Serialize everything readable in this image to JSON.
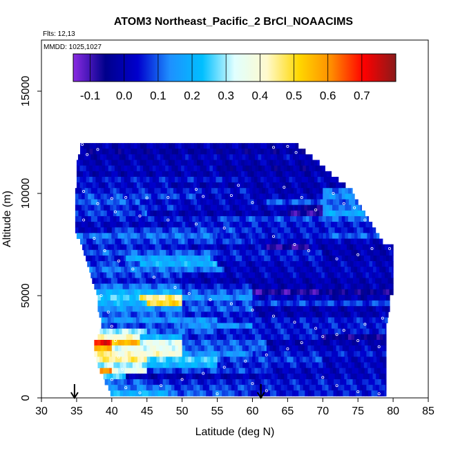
{
  "chart_data": {
    "type": "heatmap",
    "title": "ATOM3 Northeast_Pacific_2 BrCl_NOAACIMS",
    "subtitle_flights": "Flts: 12,13",
    "subtitle_dates": "MMDD: 1025,1027",
    "xlabel": "Latitude (deg N)",
    "ylabel": "Altitude (m)",
    "xlim": [
      30,
      85
    ],
    "ylim": [
      0,
      17500
    ],
    "xticks": [
      "30",
      "35",
      "40",
      "45",
      "50",
      "55",
      "60",
      "65",
      "70",
      "75",
      "80",
      "85"
    ],
    "yticks": [
      {
        "value": 0,
        "label": "0"
      },
      {
        "value": 5000,
        "label": "5000"
      },
      {
        "value": 10000,
        "label": "10000"
      },
      {
        "value": 15000,
        "label": "15000"
      }
    ],
    "colorbar": {
      "range": [
        -0.15,
        0.8
      ],
      "ticks": [
        "-0.1",
        "0.0",
        "0.1",
        "0.2",
        "0.3",
        "0.4",
        "0.5",
        "0.6",
        "0.7"
      ],
      "tick_values": [
        -0.1,
        0.0,
        0.1,
        0.2,
        0.3,
        0.4,
        0.5,
        0.6,
        0.7
      ],
      "colors": [
        "#8a2be2",
        "#00008b",
        "#0000cd",
        "#1e90ff",
        "#00bfff",
        "#e0ffff",
        "#fffacd",
        "#ffd700",
        "#ff8c00",
        "#ff0000",
        "#8b1a1a"
      ]
    },
    "arrows_latitude": [
      34.7,
      61.2
    ],
    "altitude_band_m": 275,
    "bands": [
      {
        "alt": 12325,
        "lat_min": 35.5,
        "lat_max": 66.5,
        "segs": [
          [
            35.5,
            66.5,
            0.0
          ]
        ]
      },
      {
        "alt": 12050,
        "lat_min": 35.5,
        "lat_max": 67.5,
        "segs": [
          [
            35.5,
            67.5,
            -0.02
          ]
        ]
      },
      {
        "alt": 11775,
        "lat_min": 35.2,
        "lat_max": 68.5,
        "segs": [
          [
            35.2,
            50,
            0.0
          ],
          [
            50,
            68.5,
            0.02
          ]
        ]
      },
      {
        "alt": 11500,
        "lat_min": 35,
        "lat_max": 69.5,
        "segs": [
          [
            35,
            69.5,
            0.0
          ]
        ]
      },
      {
        "alt": 11225,
        "lat_min": 35,
        "lat_max": 70.3,
        "segs": [
          [
            35,
            55,
            0.02
          ],
          [
            55,
            70.3,
            -0.02
          ]
        ]
      },
      {
        "alt": 10950,
        "lat_min": 35,
        "lat_max": 71.2,
        "segs": [
          [
            35,
            71.2,
            0.0
          ]
        ]
      },
      {
        "alt": 10675,
        "lat_min": 35,
        "lat_max": 72.2,
        "segs": [
          [
            35,
            58,
            0.05
          ],
          [
            58,
            72.2,
            0.02
          ]
        ]
      },
      {
        "alt": 10400,
        "lat_min": 35,
        "lat_max": 73.2,
        "segs": [
          [
            35,
            48,
            0.03
          ],
          [
            48,
            73.2,
            0.0
          ]
        ]
      },
      {
        "alt": 10125,
        "lat_min": 34.8,
        "lat_max": 74.2,
        "segs": [
          [
            34.8,
            60,
            0.05
          ],
          [
            60,
            70,
            0.0
          ],
          [
            70,
            74.2,
            0.12
          ]
        ]
      },
      {
        "alt": 9850,
        "lat_min": 34.8,
        "lat_max": 74.5,
        "segs": [
          [
            34.8,
            52,
            0.08
          ],
          [
            52,
            70,
            0.02
          ],
          [
            70,
            74.5,
            0.15
          ]
        ]
      },
      {
        "alt": 9575,
        "lat_min": 34.8,
        "lat_max": 75,
        "segs": [
          [
            34.8,
            44,
            0.1
          ],
          [
            44,
            62,
            0.03
          ],
          [
            62,
            75,
            0.1
          ]
        ]
      },
      {
        "alt": 9300,
        "lat_min": 34.8,
        "lat_max": 75.5,
        "segs": [
          [
            34.8,
            50,
            0.06
          ],
          [
            50,
            66,
            0.02
          ],
          [
            66,
            70,
            -0.05
          ],
          [
            70,
            75.5,
            0.12
          ]
        ]
      },
      {
        "alt": 9025,
        "lat_min": 34.8,
        "lat_max": 76,
        "segs": [
          [
            34.8,
            45,
            0.08
          ],
          [
            45,
            65,
            0.0
          ],
          [
            65,
            70,
            -0.08
          ],
          [
            70,
            76,
            0.18
          ]
        ]
      },
      {
        "alt": 8750,
        "lat_min": 34.8,
        "lat_max": 76.5,
        "segs": [
          [
            34.8,
            55,
            0.05
          ],
          [
            55,
            70,
            0.08
          ],
          [
            70,
            76.5,
            0.1
          ]
        ]
      },
      {
        "alt": 8475,
        "lat_min": 34.8,
        "lat_max": 77,
        "segs": [
          [
            34.8,
            50,
            0.02
          ],
          [
            50,
            77,
            0.05
          ]
        ]
      },
      {
        "alt": 8200,
        "lat_min": 34.8,
        "lat_max": 77.5,
        "segs": [
          [
            34.8,
            40,
            0.02
          ],
          [
            40,
            60,
            0.08
          ],
          [
            60,
            77.5,
            0.05
          ]
        ]
      },
      {
        "alt": 7925,
        "lat_min": 35,
        "lat_max": 78,
        "segs": [
          [
            35,
            55,
            0.12
          ],
          [
            55,
            70,
            0.05
          ],
          [
            70,
            78,
            0.1
          ]
        ]
      },
      {
        "alt": 7650,
        "lat_min": 35.5,
        "lat_max": 78.5,
        "segs": [
          [
            35.5,
            60,
            0.08
          ],
          [
            60,
            78.5,
            0.02
          ]
        ]
      },
      {
        "alt": 7375,
        "lat_min": 35.8,
        "lat_max": 80,
        "segs": [
          [
            35.8,
            50,
            0.05
          ],
          [
            50,
            62,
            0.02
          ],
          [
            62,
            68,
            -0.08
          ],
          [
            68,
            80,
            0.0
          ]
        ]
      },
      {
        "alt": 7100,
        "lat_min": 36,
        "lat_max": 80,
        "segs": [
          [
            36,
            55,
            0.1
          ],
          [
            55,
            70,
            0.05
          ],
          [
            70,
            80,
            0.0
          ]
        ]
      },
      {
        "alt": 6825,
        "lat_min": 36.3,
        "lat_max": 80,
        "segs": [
          [
            36.3,
            42,
            0.05
          ],
          [
            42,
            54,
            0.18
          ],
          [
            54,
            70,
            0.05
          ],
          [
            70,
            80,
            0.0
          ]
        ]
      },
      {
        "alt": 6550,
        "lat_min": 36.5,
        "lat_max": 80,
        "segs": [
          [
            36.5,
            44,
            0.08
          ],
          [
            44,
            55,
            0.2
          ],
          [
            55,
            80,
            0.02
          ]
        ]
      },
      {
        "alt": 6275,
        "lat_min": 36.8,
        "lat_max": 80,
        "segs": [
          [
            36.8,
            56,
            0.12
          ],
          [
            56,
            80,
            0.02
          ]
        ]
      },
      {
        "alt": 6000,
        "lat_min": 37,
        "lat_max": 80,
        "segs": [
          [
            37,
            50,
            0.08
          ],
          [
            50,
            80,
            0.02
          ]
        ]
      },
      {
        "alt": 5725,
        "lat_min": 37.2,
        "lat_max": 80,
        "segs": [
          [
            37.2,
            50,
            0.05
          ],
          [
            50,
            80,
            0.0
          ]
        ]
      },
      {
        "alt": 5450,
        "lat_min": 37.5,
        "lat_max": 80,
        "segs": [
          [
            37.5,
            50,
            0.12
          ],
          [
            50,
            60,
            0.05
          ],
          [
            60,
            80,
            0.0
          ]
        ]
      },
      {
        "alt": 5175,
        "lat_min": 37.8,
        "lat_max": 80,
        "segs": [
          [
            37.8,
            50,
            0.2
          ],
          [
            50,
            60,
            0.1
          ],
          [
            60,
            70,
            -0.08
          ],
          [
            70,
            80,
            -0.05
          ]
        ]
      },
      {
        "alt": 4900,
        "lat_min": 38,
        "lat_max": 79.5,
        "segs": [
          [
            38,
            44,
            0.25
          ],
          [
            44,
            50,
            0.45
          ],
          [
            50,
            60,
            0.15
          ],
          [
            60,
            70,
            0.02
          ],
          [
            70,
            79.5,
            0.0
          ]
        ]
      },
      {
        "alt": 4625,
        "lat_min": 38,
        "lat_max": 79.5,
        "segs": [
          [
            38,
            45,
            0.2
          ],
          [
            45,
            50,
            0.5
          ],
          [
            50,
            79.5,
            0.08
          ]
        ]
      },
      {
        "alt": 4350,
        "lat_min": 38,
        "lat_max": 79.5,
        "segs": [
          [
            38,
            50,
            0.15
          ],
          [
            50,
            60,
            0.1
          ],
          [
            60,
            79.5,
            0.0
          ]
        ]
      },
      {
        "alt": 4075,
        "lat_min": 38.2,
        "lat_max": 79.3,
        "segs": [
          [
            38.2,
            50,
            0.1
          ],
          [
            50,
            60,
            0.05
          ],
          [
            60,
            79.3,
            0.0
          ]
        ]
      },
      {
        "alt": 3800,
        "lat_min": 38.5,
        "lat_max": 79.2,
        "segs": [
          [
            38.5,
            55,
            0.15
          ],
          [
            55,
            79.2,
            0.05
          ]
        ]
      },
      {
        "alt": 3525,
        "lat_min": 38.5,
        "lat_max": 79,
        "segs": [
          [
            38.5,
            50,
            0.08
          ],
          [
            50,
            60,
            0.15
          ],
          [
            60,
            79,
            0.05
          ]
        ]
      },
      {
        "alt": 3250,
        "lat_min": 38.3,
        "lat_max": 79,
        "segs": [
          [
            38.3,
            45,
            0.3
          ],
          [
            45,
            55,
            0.1
          ],
          [
            55,
            79,
            0.05
          ]
        ]
      },
      {
        "alt": 2975,
        "lat_min": 38,
        "lat_max": 79,
        "segs": [
          [
            38,
            44,
            0.4
          ],
          [
            44,
            50,
            0.2
          ],
          [
            50,
            70,
            0.05
          ],
          [
            70,
            79,
            -0.05
          ]
        ]
      },
      {
        "alt": 2700,
        "lat_min": 37.5,
        "lat_max": 79,
        "segs": [
          [
            37.5,
            40,
            0.7
          ],
          [
            40,
            44,
            0.55
          ],
          [
            44,
            50,
            0.35
          ],
          [
            50,
            62,
            0.1
          ],
          [
            62,
            79,
            0.0
          ]
        ]
      },
      {
        "alt": 2425,
        "lat_min": 37.5,
        "lat_max": 79,
        "segs": [
          [
            37.5,
            40,
            0.55
          ],
          [
            40,
            50,
            0.35
          ],
          [
            50,
            62,
            0.1
          ],
          [
            62,
            79,
            0.02
          ]
        ]
      },
      {
        "alt": 2150,
        "lat_min": 37.5,
        "lat_max": 79,
        "segs": [
          [
            37.5,
            40,
            0.45
          ],
          [
            40,
            50,
            0.4
          ],
          [
            50,
            60,
            0.15
          ],
          [
            60,
            79,
            0.05
          ]
        ]
      },
      {
        "alt": 1875,
        "lat_min": 37.8,
        "lat_max": 79,
        "segs": [
          [
            37.8,
            45,
            0.45
          ],
          [
            45,
            55,
            0.25
          ],
          [
            55,
            70,
            0.08
          ],
          [
            70,
            79,
            0.02
          ]
        ]
      },
      {
        "alt": 1600,
        "lat_min": 38,
        "lat_max": 79,
        "segs": [
          [
            38,
            45,
            0.3
          ],
          [
            45,
            55,
            0.2
          ],
          [
            55,
            70,
            0.05
          ],
          [
            70,
            79,
            0.02
          ]
        ]
      },
      {
        "alt": 1325,
        "lat_min": 38.3,
        "lat_max": 79,
        "segs": [
          [
            38.3,
            40,
            0.6
          ],
          [
            40,
            45,
            0.35
          ],
          [
            45,
            62,
            0.08
          ],
          [
            62,
            79,
            0.02
          ]
        ]
      },
      {
        "alt": 1050,
        "lat_min": 38.8,
        "lat_max": 79,
        "segs": [
          [
            38.8,
            42,
            0.25
          ],
          [
            42,
            60,
            0.0
          ],
          [
            60,
            79,
            0.02
          ]
        ]
      },
      {
        "alt": 775,
        "lat_min": 39,
        "lat_max": 79,
        "segs": [
          [
            39,
            45,
            0.1
          ],
          [
            45,
            79,
            0.05
          ]
        ]
      },
      {
        "alt": 500,
        "lat_min": 39.5,
        "lat_max": 79,
        "segs": [
          [
            39.5,
            48,
            0.12
          ],
          [
            48,
            60,
            0.08
          ],
          [
            60,
            79,
            0.05
          ]
        ]
      },
      {
        "alt": 225,
        "lat_min": 39.8,
        "lat_max": 79,
        "segs": [
          [
            39.8,
            48,
            0.2
          ],
          [
            48,
            58,
            0.1
          ],
          [
            58,
            79,
            0.05
          ]
        ]
      }
    ],
    "points": [
      [
        35.8,
        12400
      ],
      [
        38,
        12150
      ],
      [
        36.5,
        11900
      ],
      [
        63,
        12250
      ],
      [
        65,
        12300
      ],
      [
        66.2,
        12000
      ],
      [
        40,
        9750
      ],
      [
        42,
        9800
      ],
      [
        45,
        9780
      ],
      [
        48,
        9800
      ],
      [
        53,
        9850
      ],
      [
        57,
        9900
      ],
      [
        60,
        9550
      ],
      [
        36,
        10100
      ],
      [
        38,
        9500
      ],
      [
        40.5,
        9100
      ],
      [
        44,
        8900
      ],
      [
        48,
        8700
      ],
      [
        52,
        8500
      ],
      [
        56,
        8300
      ],
      [
        63,
        7900
      ],
      [
        66,
        7500
      ],
      [
        68,
        7200
      ],
      [
        72,
        6800
      ],
      [
        75,
        7000
      ],
      [
        77,
        7300
      ],
      [
        79.5,
        7300
      ],
      [
        36,
        8700
      ],
      [
        37.5,
        7800
      ],
      [
        39,
        7200
      ],
      [
        41,
        6700
      ],
      [
        43,
        6300
      ],
      [
        46,
        5900
      ],
      [
        49,
        5400
      ],
      [
        51,
        5100
      ],
      [
        54,
        4800
      ],
      [
        57,
        4600
      ],
      [
        60,
        4300
      ],
      [
        63,
        4000
      ],
      [
        66,
        3700
      ],
      [
        69,
        3400
      ],
      [
        72,
        3100
      ],
      [
        75,
        2800
      ],
      [
        78,
        2500
      ],
      [
        38.5,
        5000
      ],
      [
        39.5,
        4200
      ],
      [
        40,
        3500
      ],
      [
        40.5,
        2800
      ],
      [
        41,
        2000
      ],
      [
        41.5,
        1400
      ],
      [
        40,
        900
      ],
      [
        42,
        500
      ],
      [
        44,
        250
      ],
      [
        47,
        600
      ],
      [
        50,
        900
      ],
      [
        53,
        1200
      ],
      [
        56,
        1500
      ],
      [
        59,
        1800
      ],
      [
        62,
        2100
      ],
      [
        65,
        2400
      ],
      [
        67,
        2700
      ],
      [
        70,
        3000
      ],
      [
        73,
        3300
      ],
      [
        76,
        3600
      ],
      [
        78.5,
        3900
      ],
      [
        70,
        1000
      ],
      [
        72,
        600
      ],
      [
        75,
        300
      ],
      [
        78,
        200
      ],
      [
        60,
        700
      ],
      [
        62,
        350
      ],
      [
        55,
        200
      ],
      [
        71.5,
        10000
      ],
      [
        73,
        9500
      ],
      [
        74.5,
        9300
      ],
      [
        76,
        8700
      ],
      [
        64.5,
        10300
      ],
      [
        67,
        9800
      ],
      [
        69,
        9200
      ],
      [
        58,
        10400
      ],
      [
        52,
        10200
      ]
    ]
  }
}
